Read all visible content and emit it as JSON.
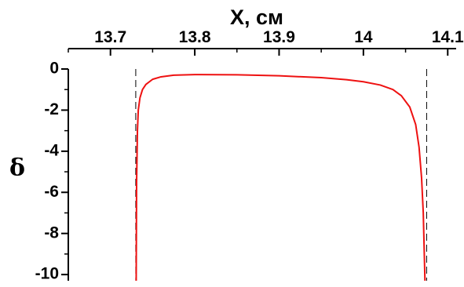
{
  "chart_data": {
    "type": "line",
    "xlabel": "X, см",
    "ylabel": "δ",
    "xlim": [
      13.65,
      14.11
    ],
    "ylim": [
      -10.3,
      0
    ],
    "x_axis_position": "top",
    "x_ticks": [
      13.7,
      13.8,
      13.9,
      14.0,
      14.1
    ],
    "x_tick_labels": [
      "13.7",
      "13.8",
      "13.9",
      "14",
      "14.1"
    ],
    "y_ticks": [
      0,
      -2,
      -4,
      -6,
      -8,
      -10
    ],
    "y_tick_labels": [
      "0",
      "-2",
      "-4",
      "-6",
      "-8",
      "-10"
    ],
    "grid": false,
    "legend": "none",
    "reference_lines_x": [
      13.73,
      14.075
    ],
    "series": [
      {
        "color": "#ee1111",
        "x": [
          13.7305,
          13.731,
          13.732,
          13.733,
          13.735,
          13.738,
          13.742,
          13.75,
          13.76,
          13.775,
          13.8,
          13.85,
          13.9,
          13.95,
          13.98,
          14.0,
          14.02,
          14.035,
          14.045,
          14.055,
          14.062,
          14.066,
          14.069,
          14.071,
          14.073
        ],
        "y": [
          -10.3,
          -5.5,
          -3.0,
          -2.0,
          -1.4,
          -1.0,
          -0.75,
          -0.5,
          -0.38,
          -0.3,
          -0.27,
          -0.28,
          -0.33,
          -0.42,
          -0.52,
          -0.62,
          -0.78,
          -1.0,
          -1.3,
          -1.85,
          -2.7,
          -3.8,
          -5.3,
          -7.0,
          -10.3
        ]
      }
    ]
  }
}
